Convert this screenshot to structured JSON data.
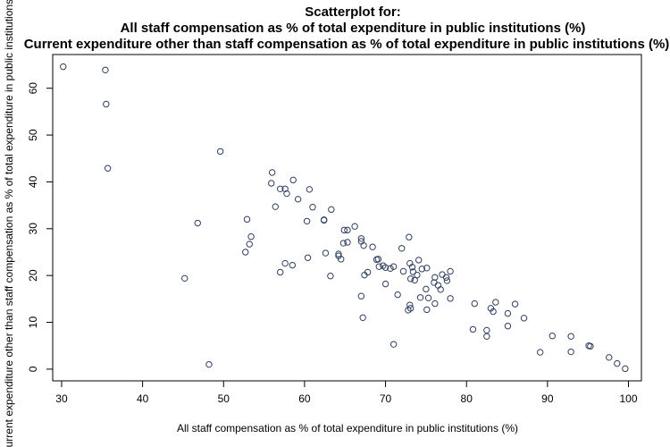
{
  "chart_data": {
    "type": "scatter",
    "title_lines": [
      "Scatterplot for:",
      "All staff compensation as % of total expenditure in public institutions (%)",
      "Current expenditure other than staff compensation as % of total expenditure in public institutions (%)"
    ],
    "xlabel": "All staff compensation as % of total expenditure in public institutions (%)",
    "ylabel": "Current expenditure other than staff compensation as % of total expenditure in public institutions (%)",
    "xlim": [
      28.9,
      101.6
    ],
    "ylim": [
      -2.5,
      67.2
    ],
    "xticks": [
      30,
      40,
      50,
      60,
      70,
      80,
      90,
      100
    ],
    "yticks": [
      0,
      10,
      20,
      30,
      40,
      50,
      60
    ],
    "grid": false,
    "point_color": "#2f3f5f",
    "points": [
      [
        30.2,
        64.6
      ],
      [
        35.4,
        63.9
      ],
      [
        35.5,
        56.6
      ],
      [
        35.7,
        42.9
      ],
      [
        49.6,
        46.5
      ],
      [
        46.8,
        31.2
      ],
      [
        45.2,
        19.4
      ],
      [
        48.2,
        1.0
      ],
      [
        56.0,
        42.0
      ],
      [
        55.9,
        39.7
      ],
      [
        57.0,
        38.5
      ],
      [
        57.6,
        38.5
      ],
      [
        57.8,
        37.5
      ],
      [
        58.6,
        40.4
      ],
      [
        59.2,
        36.3
      ],
      [
        60.6,
        38.4
      ],
      [
        61.0,
        34.6
      ],
      [
        63.3,
        34.1
      ],
      [
        56.4,
        34.7
      ],
      [
        52.9,
        32.0
      ],
      [
        60.3,
        31.6
      ],
      [
        62.4,
        31.9
      ],
      [
        62.4,
        31.8
      ],
      [
        53.4,
        28.3
      ],
      [
        53.2,
        26.7
      ],
      [
        52.7,
        25.0
      ],
      [
        57.6,
        22.6
      ],
      [
        58.5,
        22.2
      ],
      [
        57.0,
        20.7
      ],
      [
        60.4,
        23.8
      ],
      [
        62.6,
        24.8
      ],
      [
        63.2,
        19.9
      ],
      [
        64.2,
        24.6
      ],
      [
        64.2,
        24.2
      ],
      [
        64.5,
        23.5
      ],
      [
        64.8,
        26.9
      ],
      [
        64.9,
        29.7
      ],
      [
        65.3,
        27.1
      ],
      [
        65.3,
        29.7
      ],
      [
        66.2,
        30.5
      ],
      [
        67.0,
        27.9
      ],
      [
        67.0,
        27.3
      ],
      [
        67.3,
        26.4
      ],
      [
        68.4,
        26.1
      ],
      [
        67.4,
        20.1
      ],
      [
        67.8,
        20.7
      ],
      [
        68.9,
        23.4
      ],
      [
        69.1,
        23.5
      ],
      [
        69.2,
        21.9
      ],
      [
        69.7,
        22.1
      ],
      [
        70.0,
        21.7
      ],
      [
        70.6,
        21.5
      ],
      [
        71.0,
        21.9
      ],
      [
        70.0,
        18.2
      ],
      [
        67.0,
        15.6
      ],
      [
        67.2,
        11.0
      ],
      [
        71.0,
        5.3
      ],
      [
        71.5,
        15.9
      ],
      [
        72.0,
        25.8
      ],
      [
        72.9,
        28.2
      ],
      [
        73.0,
        22.6
      ],
      [
        72.2,
        20.9
      ],
      [
        73.1,
        19.3
      ],
      [
        73.3,
        21.8
      ],
      [
        73.4,
        20.8
      ],
      [
        73.6,
        19.0
      ],
      [
        73.9,
        20.1
      ],
      [
        74.1,
        23.3
      ],
      [
        74.5,
        21.4
      ],
      [
        75.1,
        21.6
      ],
      [
        74.3,
        15.3
      ],
      [
        75.0,
        17.1
      ],
      [
        75.3,
        15.2
      ],
      [
        75.1,
        12.7
      ],
      [
        72.8,
        12.6
      ],
      [
        73.1,
        13.0
      ],
      [
        73.0,
        13.7
      ],
      [
        76.1,
        19.6
      ],
      [
        76.0,
        18.5
      ],
      [
        76.5,
        17.9
      ],
      [
        76.8,
        17.0
      ],
      [
        77.0,
        20.2
      ],
      [
        77.5,
        19.6
      ],
      [
        77.6,
        18.9
      ],
      [
        78.0,
        20.9
      ],
      [
        78.0,
        15.1
      ],
      [
        76.1,
        14.0
      ],
      [
        81.0,
        14.0
      ],
      [
        80.8,
        8.5
      ],
      [
        82.5,
        8.3
      ],
      [
        82.5,
        7.0
      ],
      [
        83.0,
        13.0
      ],
      [
        83.3,
        12.3
      ],
      [
        83.6,
        14.3
      ],
      [
        85.1,
        11.9
      ],
      [
        85.1,
        9.2
      ],
      [
        86.0,
        13.9
      ],
      [
        87.1,
        10.9
      ],
      [
        89.1,
        3.6
      ],
      [
        90.6,
        7.1
      ],
      [
        92.9,
        7.0
      ],
      [
        92.9,
        3.7
      ],
      [
        95.1,
        5.0
      ],
      [
        95.3,
        4.9
      ],
      [
        97.6,
        2.5
      ],
      [
        98.6,
        1.2
      ],
      [
        99.6,
        0.1
      ]
    ]
  }
}
